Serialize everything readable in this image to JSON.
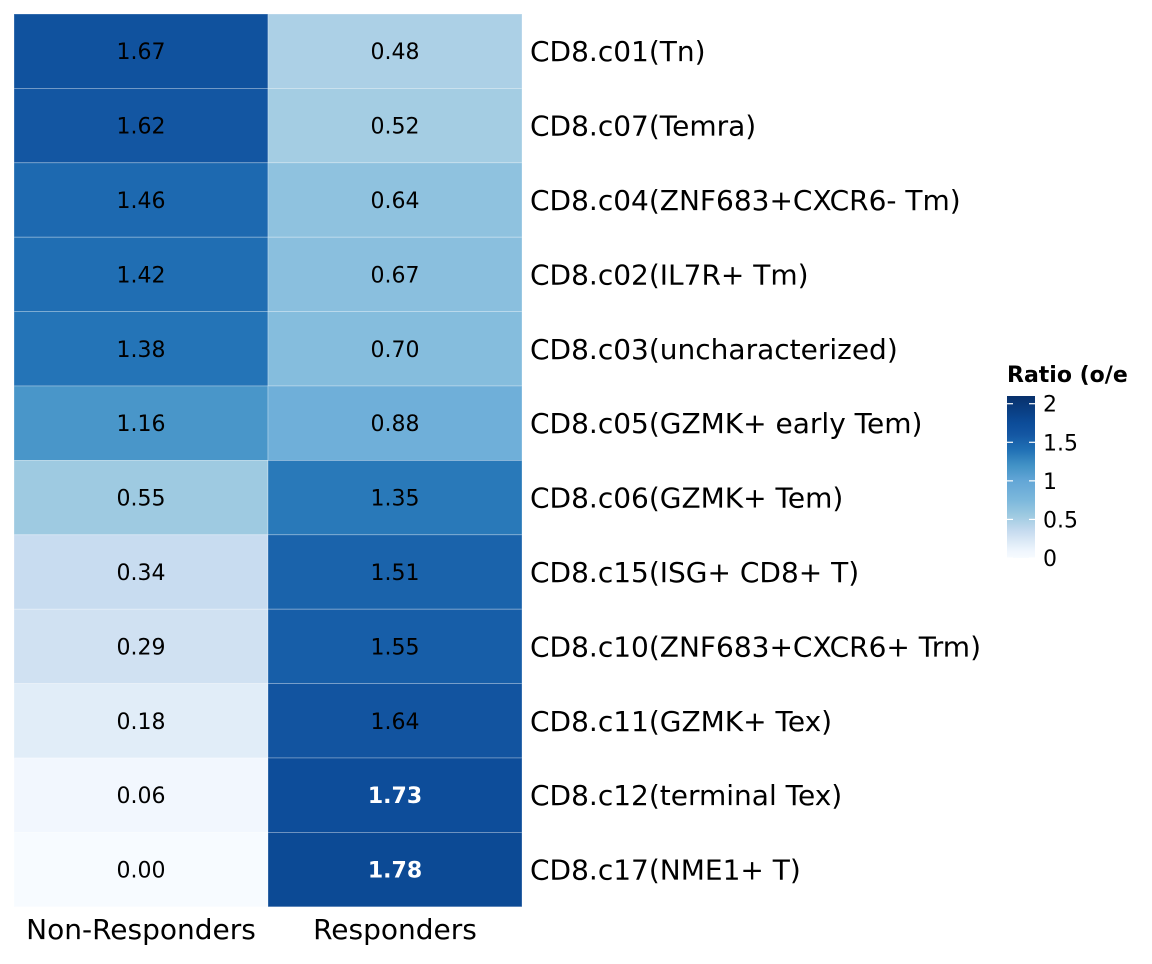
{
  "chart_data": {
    "type": "heatmap",
    "title": "",
    "columns": [
      "Non-Responders",
      "Responders"
    ],
    "rows": [
      "CD8.c01(Tn)",
      "CD8.c07(Temra)",
      "CD8.c04(ZNF683+CXCR6- Tm)",
      "CD8.c02(IL7R+ Tm)",
      "CD8.c03(uncharacterized)",
      "CD8.c05(GZMK+ early Tem)",
      "CD8.c06(GZMK+ Tem)",
      "CD8.c15(ISG+ CD8+ T)",
      "CD8.c10(ZNF683+CXCR6+ Trm)",
      "CD8.c11(GZMK+ Tex)",
      "CD8.c12(terminal Tex)",
      "CD8.c17(NME1+ T)"
    ],
    "values": [
      [
        1.67,
        0.48
      ],
      [
        1.62,
        0.52
      ],
      [
        1.46,
        0.64
      ],
      [
        1.42,
        0.67
      ],
      [
        1.38,
        0.7
      ],
      [
        1.16,
        0.88
      ],
      [
        0.55,
        1.35
      ],
      [
        0.34,
        1.51
      ],
      [
        0.29,
        1.55
      ],
      [
        0.18,
        1.64
      ],
      [
        0.06,
        1.73
      ],
      [
        0.0,
        1.78
      ]
    ],
    "labels": [
      [
        "1.67",
        "0.48"
      ],
      [
        "1.62",
        "0.52"
      ],
      [
        "1.46",
        "0.64"
      ],
      [
        "1.42",
        "0.67"
      ],
      [
        "1.38",
        "0.70"
      ],
      [
        "1.16",
        "0.88"
      ],
      [
        "0.55",
        "1.35"
      ],
      [
        "0.34",
        "1.51"
      ],
      [
        "0.29",
        "1.55"
      ],
      [
        "0.18",
        "1.64"
      ],
      [
        "0.06",
        "1.73"
      ],
      [
        "0.00",
        "1.78"
      ]
    ],
    "bold_labels": [
      [
        false,
        false
      ],
      [
        false,
        false
      ],
      [
        false,
        false
      ],
      [
        false,
        false
      ],
      [
        false,
        false
      ],
      [
        false,
        false
      ],
      [
        false,
        false
      ],
      [
        false,
        false
      ],
      [
        false,
        false
      ],
      [
        false,
        false
      ],
      [
        false,
        true
      ],
      [
        false,
        true
      ]
    ],
    "legend": {
      "title": "Ratio (o/e",
      "range": [
        0,
        2.1
      ],
      "ticks": [
        0,
        0.5,
        1,
        1.5,
        2
      ],
      "tick_labels": [
        "0",
        "0.5",
        "1",
        "1.5",
        "2"
      ],
      "placement": "right"
    },
    "color_scale": {
      "name": "Blues",
      "stops": [
        {
          "value": 0.0,
          "color": "#f7fbff"
        },
        {
          "value": 0.1,
          "color": "#eef5fd"
        },
        {
          "value": 0.2,
          "color": "#deebf7"
        },
        {
          "value": 0.35,
          "color": "#c6dbef"
        },
        {
          "value": 0.55,
          "color": "#9ecae1"
        },
        {
          "value": 0.75,
          "color": "#7cb8dc"
        },
        {
          "value": 1.0,
          "color": "#63a6d6"
        },
        {
          "value": 1.2,
          "color": "#4292c6"
        },
        {
          "value": 1.4,
          "color": "#2171b5"
        },
        {
          "value": 1.6,
          "color": "#1457a3"
        },
        {
          "value": 1.75,
          "color": "#0c4c99"
        },
        {
          "value": 2.1,
          "color": "#08306b"
        }
      ]
    }
  }
}
